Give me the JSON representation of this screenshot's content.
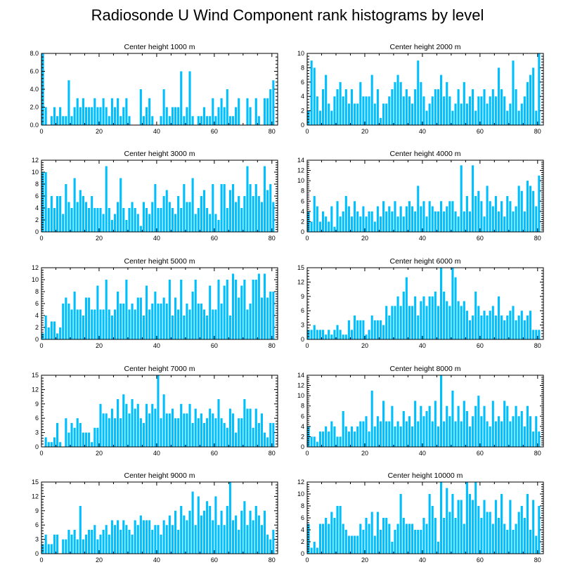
{
  "title": "Radiosonde U Wind Component rank histograms by level",
  "bar_color": "#00BFFF",
  "chart_data": [
    {
      "type": "bar",
      "title": "Center height 1000 m",
      "xlim": [
        0,
        82
      ],
      "ylim": [
        0,
        8
      ],
      "xticks": [
        0,
        20,
        40,
        60,
        80
      ],
      "yticks": [
        "0.0",
        "2.0",
        "4.0",
        "6.0",
        "8.0"
      ],
      "ytick_values": [
        0,
        2,
        4,
        6,
        8
      ],
      "values": [
        8,
        2,
        0,
        1,
        2,
        1,
        2,
        1,
        1,
        5,
        1,
        2,
        3,
        2,
        3,
        2,
        2,
        2,
        3,
        2,
        2,
        3,
        2,
        1,
        3,
        2,
        3,
        1,
        2,
        3,
        1,
        0,
        0,
        0,
        4,
        1,
        2,
        3,
        1,
        0,
        0,
        1,
        4,
        2,
        1,
        2,
        2,
        2,
        6,
        1,
        2,
        6,
        1,
        0,
        1,
        1,
        2,
        1,
        1,
        3,
        1,
        2,
        3,
        2,
        4,
        1,
        1,
        2,
        3,
        0,
        0,
        3,
        2,
        0,
        3,
        1,
        0,
        3,
        3,
        4,
        5
      ]
    },
    {
      "type": "bar",
      "title": "Center height 2000 m",
      "xlim": [
        0,
        82
      ],
      "ylim": [
        0,
        10
      ],
      "xticks": [
        0,
        20,
        40,
        60,
        80
      ],
      "yticks": [
        "0",
        "2",
        "4",
        "6",
        "8",
        "10"
      ],
      "ytick_values": [
        0,
        2,
        4,
        6,
        8,
        10
      ],
      "values": [
        2,
        9,
        8,
        4,
        2,
        5,
        7,
        3,
        2,
        4,
        5,
        6,
        4,
        5,
        3,
        5,
        3,
        3,
        6,
        4,
        4,
        4,
        7,
        3,
        5,
        1,
        3,
        3,
        4,
        5,
        6,
        7,
        6,
        4,
        5,
        4,
        3,
        5,
        9,
        6,
        4,
        2,
        3,
        4,
        5,
        5,
        7,
        4,
        6,
        4,
        2,
        3,
        5,
        3,
        6,
        3,
        4,
        5,
        2,
        4,
        4,
        5,
        3,
        4,
        5,
        4,
        8,
        5,
        4,
        2,
        3,
        9,
        5,
        2,
        3,
        4,
        6,
        7,
        8,
        2,
        10
      ]
    },
    {
      "type": "bar",
      "title": "Center height 3000 m",
      "xlim": [
        0,
        82
      ],
      "ylim": [
        0,
        12
      ],
      "xticks": [
        0,
        20,
        40,
        60,
        80
      ],
      "yticks": [
        "0",
        "2",
        "4",
        "6",
        "8",
        "10",
        "12"
      ],
      "ytick_values": [
        0,
        2,
        4,
        6,
        8,
        10,
        12
      ],
      "values": [
        10,
        10,
        4,
        6,
        4,
        6,
        6,
        3,
        8,
        5,
        4,
        9,
        5,
        7,
        6,
        5,
        4,
        6,
        4,
        4,
        4,
        3,
        11,
        4,
        2,
        3,
        5,
        9,
        4,
        2,
        4,
        5,
        4,
        3,
        1,
        5,
        4,
        3,
        5,
        8,
        4,
        4,
        6,
        7,
        5,
        4,
        3,
        6,
        4,
        8,
        5,
        5,
        9,
        3,
        4,
        6,
        7,
        4,
        3,
        8,
        3,
        2,
        8,
        8,
        4,
        7,
        8,
        5,
        6,
        4,
        6,
        11,
        8,
        6,
        8,
        6,
        5,
        11,
        7,
        8,
        5
      ]
    },
    {
      "type": "bar",
      "title": "Center height 4000 m",
      "xlim": [
        0,
        82
      ],
      "ylim": [
        0,
        14
      ],
      "xticks": [
        0,
        20,
        40,
        60,
        80
      ],
      "yticks": [
        "0",
        "2",
        "4",
        "6",
        "8",
        "10",
        "12",
        "14"
      ],
      "ytick_values": [
        0,
        2,
        4,
        6,
        8,
        10,
        12,
        14
      ],
      "values": [
        4,
        2,
        7,
        5,
        2,
        4,
        3,
        2,
        5,
        1,
        6,
        3,
        4,
        7,
        5,
        3,
        6,
        4,
        3,
        5,
        3,
        4,
        4,
        2,
        5,
        3,
        6,
        4,
        5,
        4,
        6,
        3,
        5,
        3,
        5,
        6,
        5,
        4,
        9,
        5,
        6,
        3,
        6,
        5,
        4,
        4,
        6,
        4,
        5,
        6,
        6,
        4,
        3,
        13,
        4,
        7,
        4,
        13,
        7,
        8,
        6,
        3,
        9,
        6,
        5,
        7,
        4,
        6,
        3,
        7,
        6,
        4,
        5,
        9,
        8,
        4,
        10,
        9,
        8,
        5,
        11
      ]
    },
    {
      "type": "bar",
      "title": "Center height 5000 m",
      "xlim": [
        0,
        82
      ],
      "ylim": [
        0,
        12
      ],
      "xticks": [
        0,
        20,
        40,
        60,
        80
      ],
      "yticks": [
        "0",
        "2",
        "4",
        "6",
        "8",
        "10",
        "12"
      ],
      "ytick_values": [
        0,
        2,
        4,
        6,
        8,
        10,
        12
      ],
      "values": [
        1,
        4,
        2,
        3,
        3,
        1,
        2,
        6,
        7,
        6,
        5,
        8,
        5,
        5,
        4,
        7,
        7,
        5,
        5,
        9,
        5,
        5,
        10,
        5,
        4,
        5,
        8,
        6,
        6,
        10,
        5,
        6,
        5,
        7,
        7,
        4,
        9,
        5,
        6,
        8,
        6,
        6,
        7,
        6,
        10,
        4,
        7,
        5,
        10,
        4,
        6,
        5,
        8,
        10,
        6,
        6,
        5,
        4,
        9,
        5,
        5,
        10,
        6,
        9,
        10,
        4,
        11,
        10,
        7,
        9,
        10,
        5,
        6,
        10,
        10,
        11,
        7,
        11,
        7,
        8,
        8
      ]
    },
    {
      "type": "bar",
      "title": "Center height 6000 m",
      "xlim": [
        0,
        82
      ],
      "ylim": [
        0,
        15
      ],
      "xticks": [
        0,
        20,
        40,
        60,
        80
      ],
      "yticks": [
        "0",
        "3",
        "6",
        "9",
        "12",
        "15"
      ],
      "ytick_values": [
        0,
        3,
        6,
        9,
        12,
        15
      ],
      "values": [
        2,
        2,
        3,
        2,
        2,
        2,
        1,
        2,
        1,
        2,
        3,
        2,
        1,
        1,
        4,
        2,
        5,
        4,
        4,
        4,
        1,
        2,
        5,
        4,
        4,
        4,
        3,
        7,
        5,
        7,
        7,
        9,
        7,
        10,
        13,
        7,
        7,
        9,
        5,
        8,
        9,
        7,
        9,
        9,
        10,
        7,
        15,
        10,
        8,
        7,
        15,
        13,
        8,
        7,
        8,
        6,
        4,
        5,
        10,
        7,
        5,
        6,
        5,
        6,
        7,
        5,
        9,
        5,
        4,
        5,
        6,
        7,
        4,
        5,
        6,
        4,
        5,
        6,
        2,
        2,
        2
      ]
    },
    {
      "type": "bar",
      "title": "Center height 7000 m",
      "xlim": [
        0,
        82
      ],
      "ylim": [
        0,
        15
      ],
      "xticks": [
        0,
        20,
        40,
        60,
        80
      ],
      "yticks": [
        "0",
        "3",
        "6",
        "9",
        "12",
        "15"
      ],
      "ytick_values": [
        0,
        3,
        6,
        9,
        12,
        15
      ],
      "values": [
        0,
        2,
        1,
        1,
        2,
        5,
        1,
        0,
        6,
        3,
        5,
        4,
        6,
        5,
        3,
        3,
        3,
        1,
        4,
        4,
        9,
        7,
        7,
        6,
        8,
        6,
        10,
        6,
        11,
        9,
        7,
        10,
        8,
        9,
        6,
        5,
        9,
        7,
        9,
        8,
        15,
        6,
        11,
        7,
        7,
        8,
        6,
        6,
        9,
        7,
        7,
        9,
        5,
        8,
        6,
        7,
        5,
        6,
        8,
        7,
        6,
        10,
        6,
        5,
        4,
        8,
        7,
        3,
        6,
        6,
        10,
        8,
        8,
        4,
        8,
        5,
        7,
        3,
        2,
        5,
        5
      ]
    },
    {
      "type": "bar",
      "title": "Center height 8000 m",
      "xlim": [
        0,
        82
      ],
      "ylim": [
        0,
        14
      ],
      "xticks": [
        0,
        20,
        40,
        60,
        80
      ],
      "yticks": [
        "0",
        "2",
        "4",
        "6",
        "8",
        "10",
        "12",
        "14"
      ],
      "ytick_values": [
        0,
        2,
        4,
        6,
        8,
        10,
        12,
        14
      ],
      "values": [
        4,
        2,
        2,
        1,
        3,
        3,
        4,
        3,
        5,
        4,
        2,
        2,
        7,
        4,
        3,
        4,
        3,
        4,
        5,
        5,
        6,
        3,
        11,
        4,
        6,
        5,
        9,
        5,
        5,
        8,
        4,
        5,
        4,
        7,
        5,
        6,
        4,
        9,
        5,
        8,
        6,
        7,
        8,
        5,
        9,
        4,
        14,
        5,
        8,
        6,
        11,
        5,
        8,
        5,
        9,
        7,
        4,
        6,
        8,
        10,
        6,
        8,
        5,
        4,
        9,
        5,
        6,
        5,
        9,
        8,
        5,
        6,
        8,
        6,
        7,
        4,
        8,
        6,
        3,
        6,
        3
      ]
    },
    {
      "type": "bar",
      "title": "Center height 9000 m",
      "xlim": [
        0,
        82
      ],
      "ylim": [
        0,
        15
      ],
      "xticks": [
        0,
        20,
        40,
        60,
        80
      ],
      "yticks": [
        "0",
        "3",
        "6",
        "9",
        "12",
        "15"
      ],
      "ytick_values": [
        0,
        3,
        6,
        9,
        12,
        15
      ],
      "values": [
        2,
        4,
        2,
        2,
        4,
        4,
        0,
        3,
        3,
        5,
        4,
        5,
        3,
        10,
        3,
        4,
        5,
        5,
        6,
        3,
        4,
        5,
        6,
        4,
        7,
        6,
        7,
        5,
        7,
        6,
        5,
        4,
        7,
        6,
        8,
        7,
        7,
        7,
        5,
        6,
        6,
        4,
        7,
        6,
        8,
        6,
        9,
        5,
        10,
        8,
        7,
        9,
        13,
        6,
        12,
        8,
        9,
        11,
        10,
        7,
        12,
        6,
        9,
        6,
        10,
        15,
        7,
        8,
        5,
        9,
        11,
        6,
        9,
        7,
        10,
        8,
        6,
        9,
        4,
        3,
        5
      ]
    },
    {
      "type": "bar",
      "title": "Center height 10000 m",
      "xlim": [
        0,
        82
      ],
      "ylim": [
        0,
        12
      ],
      "xticks": [
        0,
        20,
        40,
        60,
        80
      ],
      "yticks": [
        "0",
        "2",
        "4",
        "6",
        "8",
        "10",
        "12"
      ],
      "ytick_values": [
        0,
        2,
        4,
        6,
        8,
        10,
        12
      ],
      "values": [
        5,
        1,
        2,
        1,
        5,
        5,
        6,
        5,
        7,
        6,
        8,
        8,
        5,
        4,
        3,
        3,
        3,
        3,
        5,
        4,
        6,
        5,
        7,
        3,
        7,
        4,
        6,
        6,
        5,
        2,
        4,
        5,
        10,
        6,
        5,
        5,
        5,
        4,
        4,
        4,
        6,
        5,
        10,
        8,
        6,
        2,
        12,
        6,
        11,
        7,
        10,
        6,
        9,
        9,
        5,
        12,
        10,
        9,
        12,
        8,
        6,
        9,
        7,
        7,
        5,
        9,
        6,
        10,
        5,
        4,
        9,
        4,
        5,
        7,
        8,
        6,
        10,
        4,
        9,
        3,
        8
      ]
    }
  ]
}
